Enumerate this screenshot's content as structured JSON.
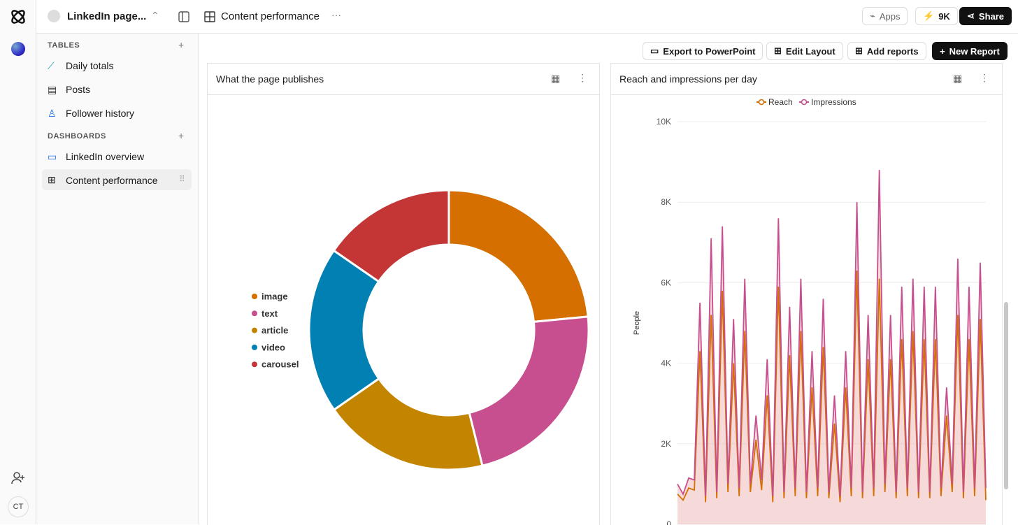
{
  "app": {
    "workspace": "LinkedIn page...",
    "page": "Content performance",
    "apps": "Apps",
    "credits": "9K",
    "share": "Share",
    "avatar": "CT"
  },
  "sidebar": {
    "tables_heading": "TABLES",
    "tables": [
      "Daily totals",
      "Posts",
      "Follower history"
    ],
    "dashboards_heading": "DASHBOARDS",
    "dashboards": [
      "LinkedIn overview",
      "Content performance"
    ]
  },
  "toolbar": [
    "Export to PowerPoint",
    "Edit Layout",
    "Add reports",
    "New Report"
  ],
  "chart_data": [
    {
      "type": "pie",
      "title": "What the page publishes",
      "donut": true,
      "categories": [
        "image",
        "text",
        "article",
        "video",
        "carousel"
      ],
      "values": [
        23.5,
        22.7,
        19.2,
        19.3,
        15.4
      ],
      "colors": [
        "#d46f00",
        "#c84f8f",
        "#c38500",
        "#0080b3",
        "#c43636"
      ],
      "legend": "left"
    },
    {
      "type": "line",
      "title": "Reach and impressions per day",
      "y_label": "People",
      "categories": [
        null,
        null,
        null,
        null,
        null,
        null,
        null,
        null,
        null,
        null,
        null,
        null,
        null,
        null,
        null,
        null,
        null,
        null,
        null,
        null,
        null,
        null,
        null,
        null,
        null,
        null,
        null,
        null,
        null,
        null,
        null,
        null,
        null,
        null,
        null,
        null,
        null,
        null,
        null,
        null,
        null,
        null,
        null,
        null,
        null,
        null,
        null,
        null,
        null,
        null,
        null,
        null,
        null,
        null,
        null,
        null
      ],
      "series": [
        {
          "name": "Reach",
          "color": "#d46f00",
          "values": [
            750,
            600,
            900,
            850,
            4300,
            550,
            5200,
            650,
            5800,
            800,
            4000,
            700,
            4800,
            800,
            2100,
            850,
            3200,
            550,
            5900,
            650,
            4200,
            700,
            4800,
            650,
            3400,
            700,
            4400,
            650,
            2500,
            550,
            3400,
            700,
            6300,
            650,
            4100,
            700,
            6100,
            800,
            4100,
            650,
            4600,
            700,
            4800,
            650,
            4600,
            650,
            4600,
            700,
            2700,
            800,
            5200,
            650,
            4600,
            700,
            5100,
            600
          ]
        },
        {
          "name": "Impressions",
          "color": "#c84f8f",
          "values": [
            1000,
            750,
            1150,
            1100,
            5500,
            700,
            7100,
            800,
            7400,
            1000,
            5100,
            900,
            6100,
            1000,
            2700,
            1100,
            4100,
            700,
            7600,
            800,
            5400,
            900,
            6100,
            800,
            4300,
            900,
            5600,
            800,
            3200,
            700,
            4300,
            900,
            8000,
            800,
            5200,
            900,
            8800,
            1000,
            5200,
            800,
            5900,
            900,
            6100,
            800,
            5900,
            800,
            5900,
            900,
            3400,
            1000,
            6600,
            800,
            5900,
            900,
            6500,
            900
          ]
        }
      ],
      "ylim": [
        0,
        10000
      ],
      "yticks": [
        0,
        {
          "value": 2000,
          "label": "2K"
        },
        {
          "value": 4000,
          "label": "4K"
        },
        {
          "value": 6000,
          "label": "6K"
        },
        {
          "value": 8000,
          "label": "8K"
        },
        {
          "value": 10000,
          "label": "10K"
        }
      ],
      "grid": true,
      "legend": "top"
    }
  ]
}
